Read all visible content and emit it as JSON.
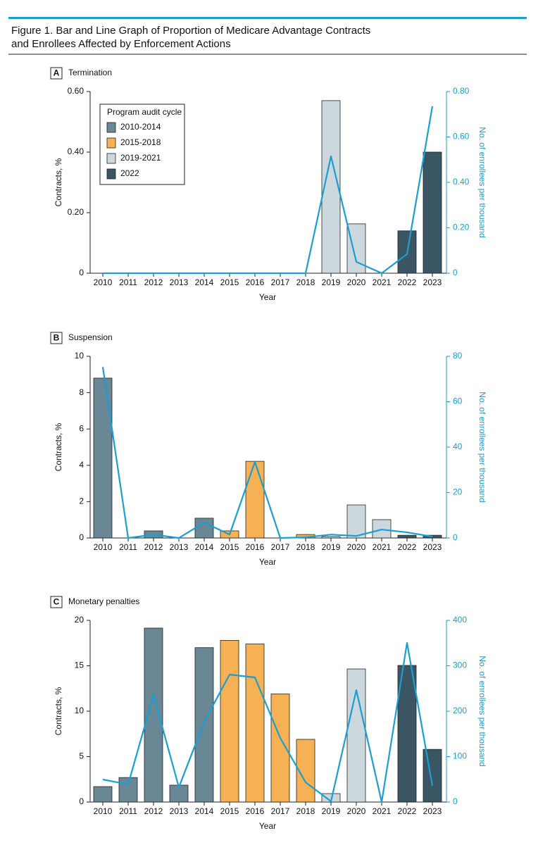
{
  "figure_title": [
    "Figure 1. Bar and Line Graph of Proportion of Medicare Advantage Contracts",
    "and Enrollees Affected by Enforcement Actions"
  ],
  "chart_data": [
    {
      "type": "bar_line",
      "panel_letter": "A",
      "title": "Termination",
      "categories": [
        "2010",
        "2011",
        "2012",
        "2013",
        "2014",
        "2015",
        "2016",
        "2017",
        "2018",
        "2019",
        "2020",
        "2021",
        "2022",
        "2023"
      ],
      "series": [
        {
          "name": "2010-2014",
          "color": "#6a8795",
          "values": [
            0,
            0,
            0,
            0,
            0,
            null,
            null,
            null,
            null,
            null,
            null,
            null,
            null,
            null
          ]
        },
        {
          "name": "2015-2018",
          "color": "#f5b153",
          "values": [
            null,
            null,
            null,
            null,
            null,
            0,
            0,
            0,
            0,
            null,
            null,
            null,
            null,
            null
          ]
        },
        {
          "name": "2019-2021",
          "color": "#cdd8de",
          "values": [
            null,
            null,
            null,
            null,
            null,
            null,
            null,
            null,
            null,
            0.57,
            0.163,
            0,
            null,
            null
          ]
        },
        {
          "name": "2022",
          "color": "#3a5664",
          "values": [
            null,
            null,
            null,
            null,
            null,
            null,
            null,
            null,
            null,
            null,
            null,
            null,
            0.14,
            0.4
          ]
        }
      ],
      "line": {
        "color": "#1a9fd0",
        "axis": "y2",
        "values": [
          0,
          0,
          0,
          0,
          0,
          0,
          0,
          0,
          0,
          0.515,
          0.05,
          0,
          0.084,
          0.735
        ]
      },
      "ylim": [
        0,
        0.6
      ],
      "yticks": [
        0,
        {
          "value": 0.2,
          "label": "0.20"
        },
        {
          "value": 0.4,
          "label": "0.40"
        },
        {
          "value": 0.6,
          "label": "0.60"
        }
      ],
      "y2lim": [
        0,
        0.8
      ],
      "y2ticks": [
        0,
        {
          "value": 0.2,
          "label": "0.20"
        },
        {
          "value": 0.4,
          "label": "0.40"
        },
        {
          "value": 0.6,
          "label": "0.60"
        },
        {
          "value": 0.8,
          "label": "0.80"
        }
      ],
      "xlabel": "Year",
      "ylabel": "Contracts, %",
      "y2label": "No. of enrollees per thousand",
      "legend": "upper left",
      "legend_title": "Program audit cycle"
    },
    {
      "type": "bar_line",
      "panel_letter": "B",
      "title": "Suspension",
      "categories": [
        "2010",
        "2011",
        "2012",
        "2013",
        "2014",
        "2015",
        "2016",
        "2017",
        "2018",
        "2019",
        "2020",
        "2021",
        "2022",
        "2023"
      ],
      "series": [
        {
          "color": "#6a8795",
          "values": [
            8.8,
            0,
            0.39,
            0,
            1.09,
            null,
            null,
            null,
            null,
            null,
            null,
            null,
            null,
            null
          ]
        },
        {
          "color": "#f5b153",
          "values": [
            null,
            null,
            null,
            null,
            null,
            0.39,
            4.22,
            0,
            0.19,
            null,
            null,
            null,
            null,
            null
          ]
        },
        {
          "color": "#cdd8de",
          "values": [
            null,
            null,
            null,
            null,
            null,
            null,
            null,
            null,
            null,
            0.08,
            1.82,
            1.01,
            null,
            null
          ]
        },
        {
          "color": "#3a5664",
          "values": [
            null,
            null,
            null,
            null,
            null,
            null,
            null,
            null,
            null,
            null,
            null,
            null,
            0.15,
            0.15
          ]
        }
      ],
      "line": {
        "color": "#1a9fd0",
        "axis": "y2",
        "values": [
          75.3,
          0,
          1.5,
          0,
          6.8,
          1.5,
          33.5,
          0,
          0.3,
          1.5,
          0.9,
          3.7,
          2.5,
          0.6
        ]
      },
      "ylim": [
        0,
        10
      ],
      "yticks": [
        0,
        2,
        4,
        6,
        8,
        10
      ],
      "y2lim": [
        0,
        80
      ],
      "y2ticks": [
        0,
        20,
        40,
        60,
        80
      ],
      "xlabel": "Year",
      "ylabel": "Contracts, %",
      "y2label": "No. of enrollees per thousand"
    },
    {
      "type": "bar_line",
      "panel_letter": "C",
      "title": "Monetary penalties",
      "categories": [
        "2010",
        "2011",
        "2012",
        "2013",
        "2014",
        "2015",
        "2016",
        "2017",
        "2018",
        "2019",
        "2020",
        "2021",
        "2022",
        "2023"
      ],
      "series": [
        {
          "color": "#6a8795",
          "values": [
            1.7,
            2.7,
            19.15,
            1.86,
            17.0,
            null,
            null,
            null,
            null,
            null,
            null,
            null,
            null,
            null
          ]
        },
        {
          "color": "#f5b153",
          "values": [
            null,
            null,
            null,
            null,
            null,
            17.8,
            17.4,
            11.9,
            6.9,
            null,
            null,
            null,
            null,
            null
          ]
        },
        {
          "color": "#cdd8de",
          "values": [
            null,
            null,
            null,
            null,
            null,
            null,
            null,
            null,
            null,
            0.93,
            14.65,
            0,
            null,
            null
          ]
        },
        {
          "color": "#3a5664",
          "values": [
            null,
            null,
            null,
            null,
            null,
            null,
            null,
            null,
            null,
            null,
            null,
            null,
            15.04,
            5.8
          ]
        }
      ],
      "line": {
        "color": "#1a9fd0",
        "axis": "y2",
        "values": [
          49.6,
          38.8,
          235.7,
          32.6,
          176.7,
          280.6,
          274.4,
          141,
          43.4,
          1.6,
          246.5,
          0,
          350.4,
          35.7
        ]
      },
      "ylim": [
        0,
        20
      ],
      "yticks": [
        0,
        5,
        10,
        15,
        20
      ],
      "y2lim": [
        0,
        400
      ],
      "y2ticks": [
        0,
        100,
        200,
        300,
        400
      ],
      "xlabel": "Year",
      "ylabel": "Contracts, %",
      "y2label": "No. of enrollees per thousand"
    }
  ]
}
